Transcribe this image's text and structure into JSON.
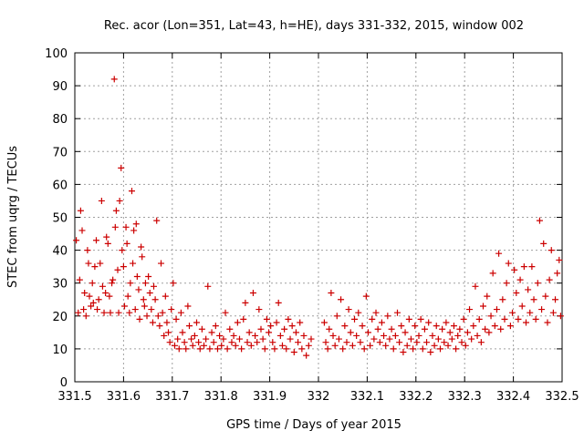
{
  "chart_data": {
    "type": "scatter",
    "title": "Rec. acor (Lon=351, Lat=43, h=HE), days 331-332, 2015, window 002",
    "xlabel": "GPS time / Days of year 2015",
    "ylabel": "STEC from uqrg / TECUs",
    "xlim": [
      331.5,
      332.5
    ],
    "ylim": [
      0,
      100
    ],
    "x_ticks": [
      331.5,
      331.6,
      331.7,
      331.8,
      331.9,
      332.0,
      332.1,
      332.2,
      332.3,
      332.4,
      332.5
    ],
    "x_tick_labels": [
      "331.5",
      "331.6",
      "331.7",
      "331.8",
      "331.9",
      "332",
      "332.1",
      "332.2",
      "332.3",
      "332.4",
      "332.5"
    ],
    "y_ticks": [
      0,
      10,
      20,
      30,
      40,
      50,
      60,
      70,
      80,
      90,
      100
    ],
    "y_tick_labels": [
      "0",
      "10",
      "20",
      "30",
      "40",
      "50",
      "60",
      "70",
      "80",
      "90",
      "100"
    ],
    "grid": true,
    "marker": "+",
    "color": "#cc0000",
    "series": [
      {
        "name": "",
        "points": [
          [
            331.503,
            43
          ],
          [
            331.507,
            21
          ],
          [
            331.51,
            31
          ],
          [
            331.512,
            52
          ],
          [
            331.515,
            46
          ],
          [
            331.518,
            22
          ],
          [
            331.52,
            27
          ],
          [
            331.523,
            20
          ],
          [
            331.526,
            40
          ],
          [
            331.528,
            36
          ],
          [
            331.53,
            26
          ],
          [
            331.533,
            23
          ],
          [
            331.536,
            30
          ],
          [
            331.538,
            24
          ],
          [
            331.541,
            35
          ],
          [
            331.544,
            43
          ],
          [
            331.546,
            22
          ],
          [
            331.549,
            25
          ],
          [
            331.552,
            36
          ],
          [
            331.555,
            55
          ],
          [
            331.557,
            29
          ],
          [
            331.56,
            21
          ],
          [
            331.563,
            27
          ],
          [
            331.565,
            44
          ],
          [
            331.568,
            42
          ],
          [
            331.571,
            26
          ],
          [
            331.573,
            21
          ],
          [
            331.576,
            30
          ],
          [
            331.578,
            31
          ],
          [
            331.581,
            92
          ],
          [
            331.583,
            47
          ],
          [
            331.585,
            52
          ],
          [
            331.588,
            34
          ],
          [
            331.59,
            21
          ],
          [
            331.592,
            55
          ],
          [
            331.595,
            65
          ],
          [
            331.597,
            40
          ],
          [
            331.6,
            35
          ],
          [
            331.602,
            23
          ],
          [
            331.605,
            47
          ],
          [
            331.607,
            42
          ],
          [
            331.609,
            26
          ],
          [
            331.612,
            21
          ],
          [
            331.614,
            30
          ],
          [
            331.617,
            58
          ],
          [
            331.619,
            36
          ],
          [
            331.621,
            46
          ],
          [
            331.624,
            22
          ],
          [
            331.626,
            48
          ],
          [
            331.628,
            32
          ],
          [
            331.631,
            28
          ],
          [
            331.633,
            19
          ],
          [
            331.636,
            41
          ],
          [
            331.638,
            38
          ],
          [
            331.641,
            25
          ],
          [
            331.643,
            23
          ],
          [
            331.645,
            30
          ],
          [
            331.648,
            20
          ],
          [
            331.651,
            32
          ],
          [
            331.654,
            27
          ],
          [
            331.657,
            22
          ],
          [
            331.66,
            18
          ],
          [
            331.662,
            29
          ],
          [
            331.665,
            25
          ],
          [
            331.668,
            49
          ],
          [
            331.671,
            20
          ],
          [
            331.674,
            17
          ],
          [
            331.677,
            36
          ],
          [
            331.68,
            21
          ],
          [
            331.683,
            14
          ],
          [
            331.686,
            26
          ],
          [
            331.689,
            18
          ],
          [
            331.692,
            15
          ],
          [
            331.695,
            12
          ],
          [
            331.698,
            22
          ],
          [
            331.702,
            30
          ],
          [
            331.705,
            11
          ],
          [
            331.708,
            19
          ],
          [
            331.711,
            13
          ],
          [
            331.714,
            10
          ],
          [
            331.718,
            21
          ],
          [
            331.721,
            15
          ],
          [
            331.725,
            12
          ],
          [
            331.728,
            10
          ],
          [
            331.732,
            23
          ],
          [
            331.735,
            17
          ],
          [
            331.739,
            13
          ],
          [
            331.742,
            11
          ],
          [
            331.746,
            14
          ],
          [
            331.75,
            18
          ],
          [
            331.754,
            12
          ],
          [
            331.757,
            10
          ],
          [
            331.761,
            16
          ],
          [
            331.765,
            11
          ],
          [
            331.769,
            13
          ],
          [
            331.773,
            29
          ],
          [
            331.777,
            10
          ],
          [
            331.781,
            15
          ],
          [
            331.785,
            12
          ],
          [
            331.789,
            17
          ],
          [
            331.793,
            10
          ],
          [
            331.797,
            14
          ],
          [
            331.801,
            11
          ],
          [
            331.805,
            13
          ],
          [
            331.809,
            21
          ],
          [
            331.813,
            10
          ],
          [
            331.818,
            16
          ],
          [
            331.822,
            12
          ],
          [
            331.826,
            14
          ],
          [
            331.83,
            11
          ],
          [
            331.834,
            18
          ],
          [
            331.838,
            13
          ],
          [
            331.842,
            10
          ],
          [
            331.846,
            19
          ],
          [
            331.85,
            24
          ],
          [
            331.854,
            12
          ],
          [
            331.858,
            15
          ],
          [
            331.862,
            11
          ],
          [
            331.866,
            27
          ],
          [
            331.87,
            14
          ],
          [
            331.874,
            12
          ],
          [
            331.878,
            22
          ],
          [
            331.882,
            16
          ],
          [
            331.886,
            13
          ],
          [
            331.89,
            10
          ],
          [
            331.894,
            19
          ],
          [
            331.898,
            15
          ],
          [
            331.902,
            17
          ],
          [
            331.906,
            12
          ],
          [
            331.91,
            10
          ],
          [
            331.914,
            18
          ],
          [
            331.918,
            24
          ],
          [
            331.922,
            14
          ],
          [
            331.926,
            11
          ],
          [
            331.93,
            16
          ],
          [
            331.934,
            10
          ],
          [
            331.938,
            19
          ],
          [
            331.942,
            13
          ],
          [
            331.946,
            17
          ],
          [
            331.95,
            9
          ],
          [
            331.954,
            15
          ],
          [
            331.958,
            12
          ],
          [
            331.962,
            18
          ],
          [
            331.966,
            10
          ],
          [
            331.97,
            14
          ],
          [
            331.975,
            8
          ],
          [
            331.98,
            11
          ],
          [
            331.985,
            13
          ],
          [
            332.012,
            18
          ],
          [
            332.015,
            12
          ],
          [
            332.019,
            10
          ],
          [
            332.022,
            16
          ],
          [
            332.026,
            27
          ],
          [
            332.03,
            14
          ],
          [
            332.034,
            11
          ],
          [
            332.038,
            20
          ],
          [
            332.042,
            13
          ],
          [
            332.046,
            25
          ],
          [
            332.05,
            10
          ],
          [
            332.054,
            17
          ],
          [
            332.058,
            12
          ],
          [
            332.062,
            22
          ],
          [
            332.066,
            15
          ],
          [
            332.07,
            11
          ],
          [
            332.074,
            19
          ],
          [
            332.078,
            14
          ],
          [
            332.082,
            21
          ],
          [
            332.086,
            12
          ],
          [
            332.09,
            17
          ],
          [
            332.094,
            10
          ],
          [
            332.098,
            26
          ],
          [
            332.102,
            15
          ],
          [
            332.106,
            11
          ],
          [
            332.11,
            19
          ],
          [
            332.114,
            13
          ],
          [
            332.118,
            21
          ],
          [
            332.122,
            16
          ],
          [
            332.126,
            12
          ],
          [
            332.13,
            18
          ],
          [
            332.134,
            14
          ],
          [
            332.138,
            11
          ],
          [
            332.142,
            20
          ],
          [
            332.146,
            13
          ],
          [
            332.15,
            16
          ],
          [
            332.154,
            10
          ],
          [
            332.158,
            14
          ],
          [
            332.162,
            21
          ],
          [
            332.166,
            12
          ],
          [
            332.17,
            17
          ],
          [
            332.174,
            9
          ],
          [
            332.178,
            15
          ],
          [
            332.182,
            11
          ],
          [
            332.186,
            19
          ],
          [
            332.19,
            13
          ],
          [
            332.194,
            10
          ],
          [
            332.198,
            17
          ],
          [
            332.202,
            12
          ],
          [
            332.206,
            14
          ],
          [
            332.21,
            19
          ],
          [
            332.214,
            10
          ],
          [
            332.218,
            16
          ],
          [
            332.222,
            12
          ],
          [
            332.226,
            18
          ],
          [
            332.23,
            9
          ],
          [
            332.234,
            14
          ],
          [
            332.238,
            11
          ],
          [
            332.242,
            17
          ],
          [
            332.246,
            13
          ],
          [
            332.25,
            10
          ],
          [
            332.254,
            16
          ],
          [
            332.258,
            12
          ],
          [
            332.262,
            18
          ],
          [
            332.266,
            11
          ],
          [
            332.27,
            15
          ],
          [
            332.274,
            13
          ],
          [
            332.278,
            17
          ],
          [
            332.282,
            10
          ],
          [
            332.286,
            14
          ],
          [
            332.29,
            16
          ],
          [
            332.294,
            12
          ],
          [
            332.298,
            19
          ],
          [
            332.302,
            11
          ],
          [
            332.306,
            15
          ],
          [
            332.31,
            22
          ],
          [
            332.314,
            13
          ],
          [
            332.318,
            17
          ],
          [
            332.322,
            29
          ],
          [
            332.326,
            14
          ],
          [
            332.33,
            19
          ],
          [
            332.334,
            12
          ],
          [
            332.338,
            23
          ],
          [
            332.342,
            16
          ],
          [
            332.346,
            26
          ],
          [
            332.35,
            15
          ],
          [
            332.354,
            20
          ],
          [
            332.358,
            33
          ],
          [
            332.362,
            17
          ],
          [
            332.366,
            22
          ],
          [
            332.37,
            39
          ],
          [
            332.374,
            16
          ],
          [
            332.378,
            25
          ],
          [
            332.382,
            19
          ],
          [
            332.386,
            30
          ],
          [
            332.39,
            36
          ],
          [
            332.394,
            17
          ],
          [
            332.398,
            21
          ],
          [
            332.402,
            34
          ],
          [
            332.406,
            27
          ],
          [
            332.41,
            19
          ],
          [
            332.414,
            31
          ],
          [
            332.418,
            23
          ],
          [
            332.422,
            35
          ],
          [
            332.426,
            18
          ],
          [
            332.43,
            28
          ],
          [
            332.434,
            21
          ],
          [
            332.438,
            35
          ],
          [
            332.442,
            25
          ],
          [
            332.446,
            19
          ],
          [
            332.45,
            30
          ],
          [
            332.454,
            49
          ],
          [
            332.458,
            22
          ],
          [
            332.462,
            42
          ],
          [
            332.466,
            26
          ],
          [
            332.47,
            18
          ],
          [
            332.474,
            31
          ],
          [
            332.478,
            40
          ],
          [
            332.482,
            21
          ],
          [
            332.486,
            25
          ],
          [
            332.49,
            33
          ],
          [
            332.494,
            37
          ],
          [
            332.497,
            20
          ]
        ]
      }
    ]
  }
}
